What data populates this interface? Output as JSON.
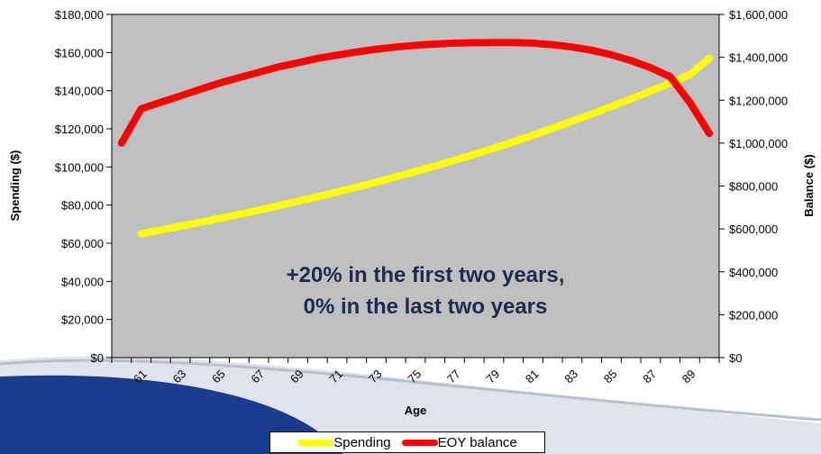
{
  "chart_data": {
    "type": "line",
    "annotation": [
      "+20% in the first two years,",
      "0% in the last two years"
    ],
    "xlabel": "Age",
    "ylabel_left": "Spending ($)",
    "ylabel_right": "Balance ($)",
    "x": [
      60,
      61,
      62,
      63,
      64,
      65,
      66,
      67,
      68,
      69,
      70,
      71,
      72,
      73,
      74,
      75,
      76,
      77,
      78,
      79,
      80,
      81,
      82,
      83,
      84,
      85,
      86,
      87,
      88,
      89,
      90
    ],
    "x_tick_labels": [
      "61",
      "63",
      "65",
      "67",
      "69",
      "71",
      "73",
      "75",
      "77",
      "79",
      "81",
      "83",
      "85",
      "87",
      "89"
    ],
    "ylim_left": [
      0,
      180000
    ],
    "ylim_right": [
      0,
      1600000
    ],
    "y_left_tick_labels": [
      "$0",
      "$20,000",
      "$40,000",
      "$60,000",
      "$80,000",
      "$100,000",
      "$120,000",
      "$140,000",
      "$160,000",
      "$180,000"
    ],
    "y_right_tick_labels": [
      "$0",
      "$200,000",
      "$400,000",
      "$600,000",
      "$800,000",
      "$1,000,000",
      "$1,200,000",
      "$1,400,000",
      "$1,600,000"
    ],
    "series": [
      {
        "name": "Spending",
        "axis": "left",
        "color": "#ffff00",
        "start_index": 1,
        "values": [
          null,
          65000,
          66900,
          68900,
          70900,
          73000,
          75100,
          77300,
          79600,
          82000,
          84400,
          86900,
          89400,
          92000,
          94800,
          97600,
          100500,
          103500,
          106600,
          109800,
          113200,
          116700,
          120300,
          124000,
          127800,
          131700,
          135700,
          139800,
          144000,
          148400,
          157000
        ]
      },
      {
        "name": "EOY balance",
        "axis": "right",
        "color": "#ff0000",
        "values": [
          1000000,
          1160000,
          1190000,
          1220000,
          1250000,
          1280000,
          1305000,
          1330000,
          1355000,
          1375000,
          1395000,
          1410000,
          1425000,
          1438000,
          1448000,
          1456000,
          1462000,
          1466000,
          1468000,
          1469000,
          1469000,
          1466000,
          1459000,
          1448000,
          1433000,
          1412000,
          1385000,
          1352000,
          1310000,
          1190000,
          1045000
        ]
      }
    ],
    "plot_background": "#c0c0c0",
    "grid": false,
    "legend_position": "bottom"
  }
}
